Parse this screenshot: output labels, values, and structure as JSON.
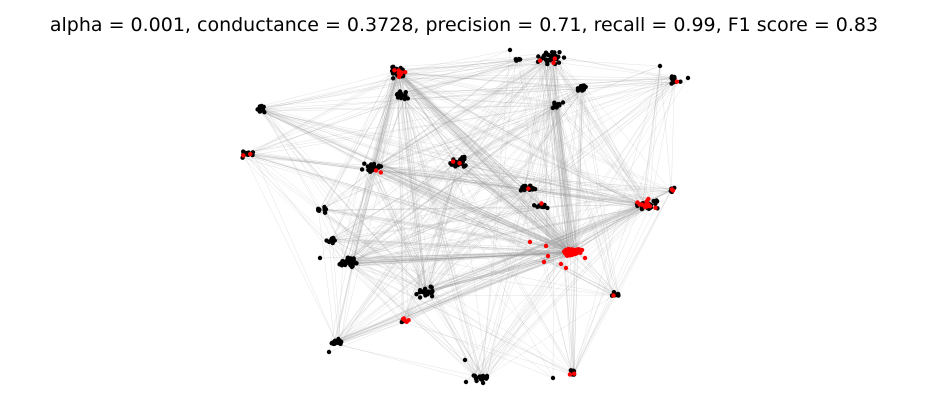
{
  "title": "alpha = 0.001, conductance = 0.3728, precision = 0.71, recall = 0.99, F1 score = 0.83",
  "colors": {
    "node": "#000000",
    "highlighted_node": "#ff0000",
    "edge": "#999999",
    "background": "#ffffff"
  },
  "graph": {
    "type": "network",
    "node_clusters": 22,
    "highlighted_cluster": "center-right dense red cluster"
  }
}
